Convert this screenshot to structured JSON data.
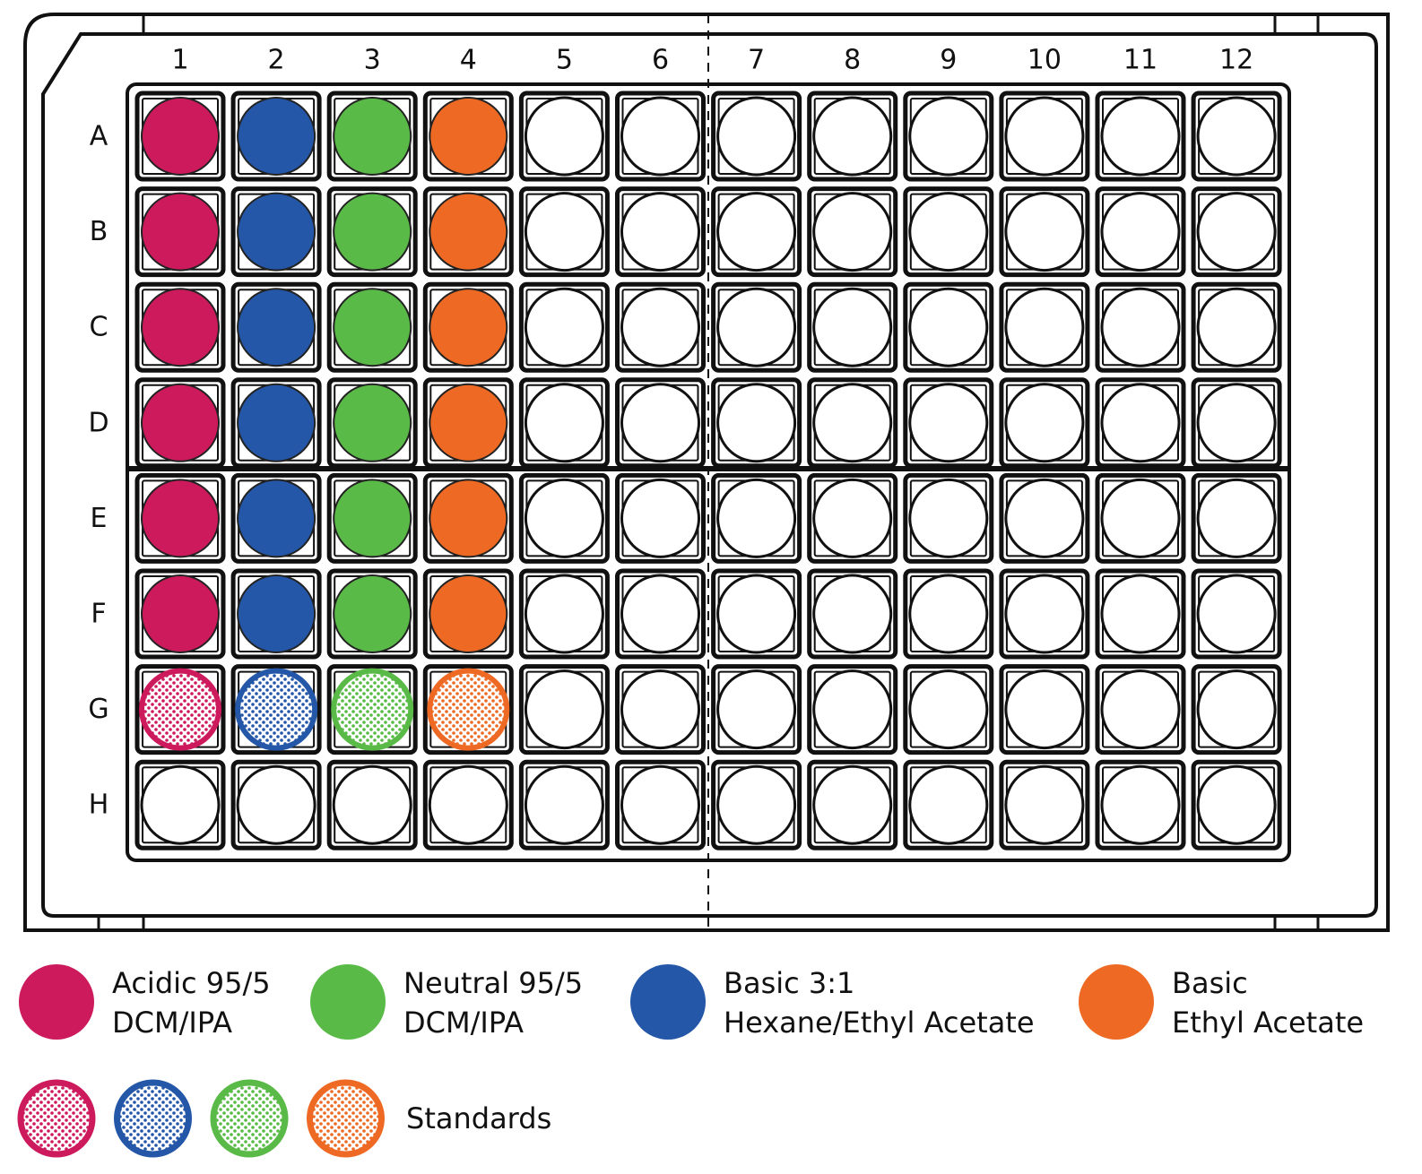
{
  "plate": {
    "columns": [
      "1",
      "2",
      "3",
      "4",
      "5",
      "6",
      "7",
      "8",
      "9",
      "10",
      "11",
      "12"
    ],
    "rows": [
      "A",
      "B",
      "C",
      "D",
      "E",
      "F",
      "G",
      "H"
    ]
  },
  "conditions": [
    {
      "id": "acidic",
      "color": "#cc1a5c",
      "column": "1",
      "sample_rows": [
        "A",
        "B",
        "C",
        "D",
        "E",
        "F"
      ],
      "standard_row": "G",
      "legend_lines": [
        "Acidic 95/5",
        "DCM/IPA"
      ]
    },
    {
      "id": "basic-hexane",
      "color": "#2457a8",
      "column": "2",
      "sample_rows": [
        "A",
        "B",
        "C",
        "D",
        "E",
        "F"
      ],
      "standard_row": "G",
      "legend_lines": [
        "Basic 3:1",
        "Hexane/Ethyl Acetate"
      ]
    },
    {
      "id": "neutral",
      "color": "#5aba47",
      "column": "3",
      "sample_rows": [
        "A",
        "B",
        "C",
        "D",
        "E",
        "F"
      ],
      "standard_row": "G",
      "legend_lines": [
        "Neutral 95/5",
        "DCM/IPA"
      ]
    },
    {
      "id": "basic-ethyl-acetate",
      "color": "#ee6a24",
      "column": "4",
      "sample_rows": [
        "A",
        "B",
        "C",
        "D",
        "E",
        "F"
      ],
      "standard_row": "G",
      "legend_lines": [
        "Basic",
        "Ethyl Acetate"
      ]
    }
  ],
  "legend": {
    "order": [
      "acidic",
      "neutral",
      "basic-hexane",
      "basic-ethyl-acetate"
    ],
    "standards_order": [
      "acidic",
      "basic-hexane",
      "neutral",
      "basic-ethyl-acetate"
    ],
    "standards_label": "Standards"
  }
}
